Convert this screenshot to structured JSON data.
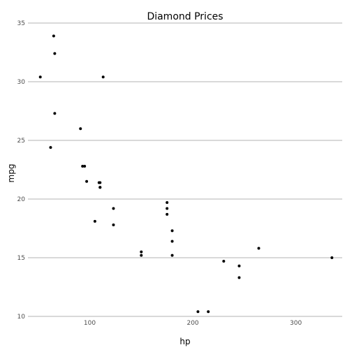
{
  "chart_data": {
    "type": "scatter",
    "title": "Diamond Prices",
    "xlabel": "hp",
    "ylabel": "mpg",
    "xlim": [
      40,
      345
    ],
    "ylim": [
      10,
      35
    ],
    "x_ticks": [
      100,
      200,
      300
    ],
    "y_ticks": [
      10,
      15,
      20,
      25,
      30,
      35
    ],
    "grid": "horizontal",
    "legend": "none",
    "point_color": "#000000",
    "gridline_color": "#b3b3b3",
    "tick_label_color": "#4d4d4d",
    "points": [
      {
        "x": 110,
        "y": 21.0
      },
      {
        "x": 110,
        "y": 21.0
      },
      {
        "x": 93,
        "y": 22.8
      },
      {
        "x": 110,
        "y": 21.4
      },
      {
        "x": 175,
        "y": 18.7
      },
      {
        "x": 105,
        "y": 18.1
      },
      {
        "x": 245,
        "y": 14.3
      },
      {
        "x": 62,
        "y": 24.4
      },
      {
        "x": 95,
        "y": 22.8
      },
      {
        "x": 123,
        "y": 19.2
      },
      {
        "x": 123,
        "y": 17.8
      },
      {
        "x": 180,
        "y": 16.4
      },
      {
        "x": 180,
        "y": 17.3
      },
      {
        "x": 180,
        "y": 15.2
      },
      {
        "x": 205,
        "y": 10.4
      },
      {
        "x": 215,
        "y": 10.4
      },
      {
        "x": 230,
        "y": 14.7
      },
      {
        "x": 66,
        "y": 32.4
      },
      {
        "x": 52,
        "y": 30.4
      },
      {
        "x": 65,
        "y": 33.9
      },
      {
        "x": 97,
        "y": 21.5
      },
      {
        "x": 150,
        "y": 15.5
      },
      {
        "x": 150,
        "y": 15.2
      },
      {
        "x": 245,
        "y": 13.3
      },
      {
        "x": 175,
        "y": 19.2
      },
      {
        "x": 66,
        "y": 27.3
      },
      {
        "x": 91,
        "y": 26.0
      },
      {
        "x": 113,
        "y": 30.4
      },
      {
        "x": 264,
        "y": 15.8
      },
      {
        "x": 175,
        "y": 19.7
      },
      {
        "x": 335,
        "y": 15.0
      },
      {
        "x": 109,
        "y": 21.4
      }
    ]
  }
}
